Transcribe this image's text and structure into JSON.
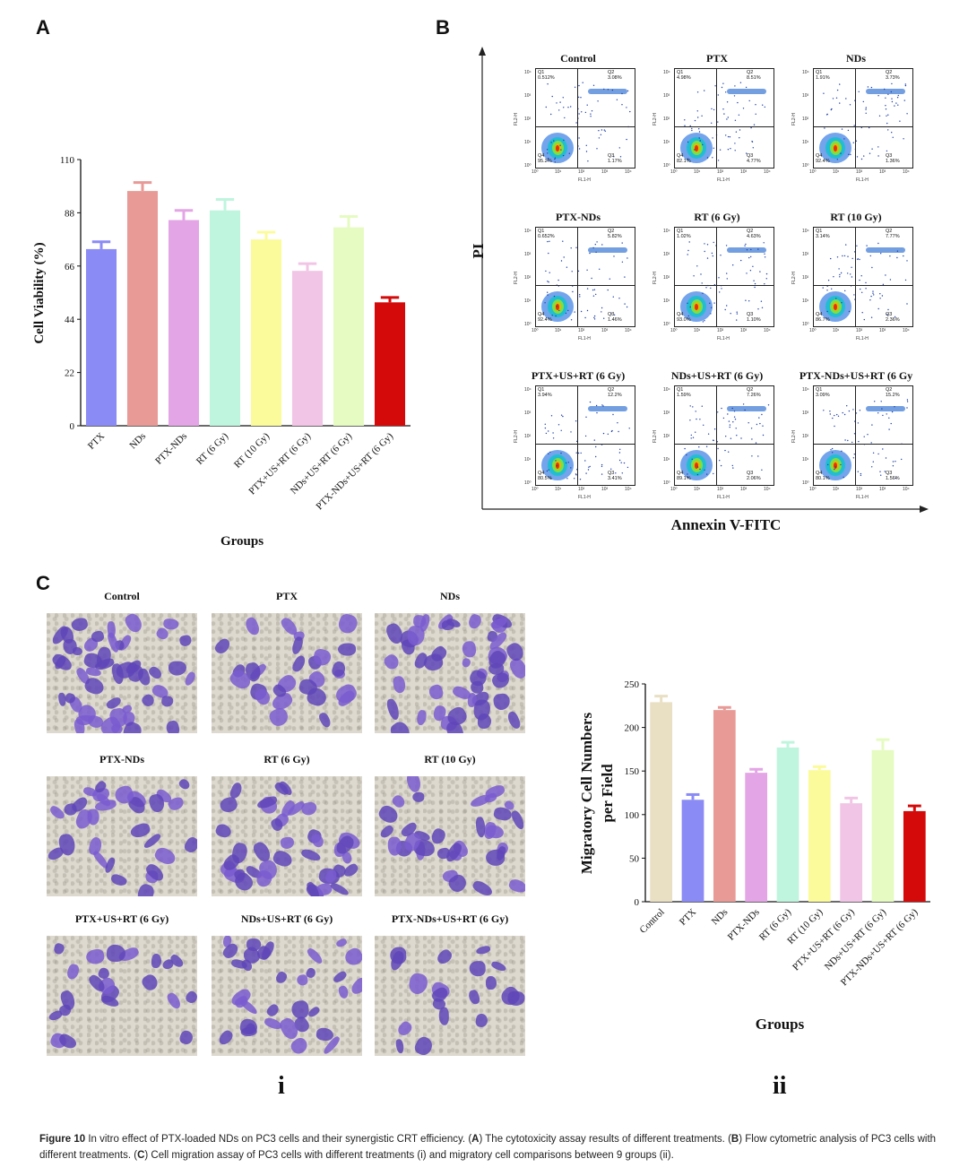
{
  "panels": {
    "a": "A",
    "b": "B",
    "c": "C",
    "i": "i",
    "ii": "ii"
  },
  "chart_data": [
    {
      "id": "A",
      "type": "bar",
      "categories": [
        "PTX",
        "NDs",
        "PTX-NDs",
        "RT (6 Gy)",
        "RT (10 Gy)",
        "PTX+US+RT (6 Gy)",
        "NDs+US+RT (6 Gy)",
        "PTX-NDs+US+RT (6 Gy)"
      ],
      "values": [
        73,
        97,
        85,
        89,
        77,
        64,
        82,
        51
      ],
      "errors": [
        3,
        3.5,
        4,
        4.5,
        3,
        3,
        4.5,
        2
      ],
      "colors": [
        "#8b8bf5",
        "#e89a96",
        "#e3a5e5",
        "#bff5de",
        "#fbfb9c",
        "#f1c5e5",
        "#e6fbc2",
        "#d40a0a"
      ],
      "ylabel": "Cell Viability (%)",
      "xlabel": "Groups",
      "yticks": [
        "0",
        "22",
        "44",
        "66",
        "88",
        "110"
      ],
      "ylim": [
        0,
        110
      ]
    },
    {
      "id": "C-ii",
      "type": "bar",
      "categories": [
        "Control",
        "PTX",
        "NDs",
        "PTX-NDs",
        "RT (6 Gy)",
        "RT (10 Gy)",
        "PTX+US+RT (6 Gy)",
        "NDs+US+RT (6 Gy)",
        "PTX-NDs+US+RT (6 Gy)"
      ],
      "values": [
        229,
        117,
        220,
        148,
        177,
        151,
        113,
        174,
        104
      ],
      "errors": [
        7,
        6,
        3,
        4,
        6,
        4,
        6,
        12,
        6
      ],
      "colors": [
        "#e9dfc3",
        "#8b8bf5",
        "#e89a96",
        "#e3a5e5",
        "#bff5de",
        "#fbfb9c",
        "#f1c5e5",
        "#e6fbc2",
        "#d40a0a"
      ],
      "ylabel_line1": "Migratory Cell Numbers",
      "ylabel_line2": "per Field",
      "xlabel": "Groups",
      "yticks": [
        "0",
        "50",
        "100",
        "150",
        "200",
        "250"
      ],
      "ylim": [
        0,
        250
      ]
    }
  ],
  "flow": {
    "ylabel": "PI",
    "xlabel": "Annexin V-FITC",
    "axis_x": "FL1-H",
    "axis_y": "FL2-H",
    "ticks": [
      "10⁰",
      "10¹",
      "10²",
      "10³",
      "10⁴"
    ],
    "quad": {
      "q1": "Q1",
      "q2": "Q2",
      "q3": "Q3",
      "q4": "Q4"
    },
    "plots": [
      {
        "title": "Control",
        "q1": "0.512%",
        "q2": "3.08%",
        "q3": "1.17%",
        "q4": "95.2%"
      },
      {
        "title": "PTX",
        "q1": "4.98%",
        "q2": "8.51%",
        "q3": "4.77%",
        "q4": "82.1%"
      },
      {
        "title": "NDs",
        "q1": "1.91%",
        "q2": "3.73%",
        "q3": "1.36%",
        "q4": "92.4%"
      },
      {
        "title": "PTX-NDs",
        "q1": "0.652%",
        "q2": "5.82%",
        "q3": "1.46%",
        "q4": "92.4%"
      },
      {
        "title": "RT (6 Gy)",
        "q1": "1.02%",
        "q2": "4.63%",
        "q3": "1.10%",
        "q4": "93.0%"
      },
      {
        "title": "RT (10 Gy)",
        "q1": "3.14%",
        "q2": "7.77%",
        "q3": "2.36%",
        "q4": "86.7%"
      },
      {
        "title": "PTX+US+RT (6 Gy)",
        "q1": "3.94%",
        "q2": "12.2%",
        "q3": "3.41%",
        "q4": "80.5%"
      },
      {
        "title": "NDs+US+RT (6 Gy)",
        "q1": "1.59%",
        "q2": "7.26%",
        "q3": "2.06%",
        "q4": "89.1%"
      },
      {
        "title": "PTX-NDs+US+RT (6 Gy",
        "q1": "3.09%",
        "q2": "15.2%",
        "q3": "1.56%",
        "q4": "80.1%"
      }
    ]
  },
  "micrographs": [
    {
      "title": "Control",
      "density": 0.9
    },
    {
      "title": "PTX",
      "density": 0.5
    },
    {
      "title": "NDs",
      "density": 0.85
    },
    {
      "title": "PTX-NDs",
      "density": 0.55
    },
    {
      "title": "RT (6 Gy)",
      "density": 0.7
    },
    {
      "title": "RT (10 Gy)",
      "density": 0.6
    },
    {
      "title": "PTX+US+RT (6 Gy)",
      "density": 0.4
    },
    {
      "title": "NDs+US+RT (6 Gy)",
      "density": 0.6
    },
    {
      "title": "PTX-NDs+US+RT (6 Gy)",
      "density": 0.35
    }
  ],
  "caption": {
    "label": "Figure 10",
    "t1": " In vitro effect of PTX-loaded NDs on PC3 cells and their synergistic CRT efficiency. (",
    "a": "A",
    "t2": ") The cytotoxicity assay results of different treatments. (",
    "b": "B",
    "t3": ") Flow cytometric analysis of PC3 cells with different treatments. (",
    "c": "C",
    "t4": ") Cell migration assay of PC3 cells with different treatments (i) and migratory cell comparisons between 9 groups (ii)."
  }
}
